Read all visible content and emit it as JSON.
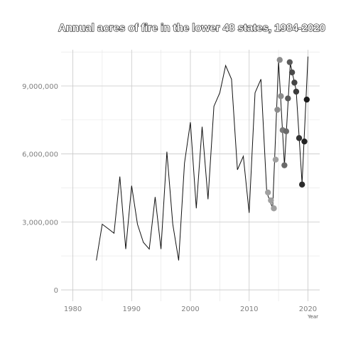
{
  "chart_data": {
    "type": "line",
    "title": "Annual acres of fire in the lower 48 states, 1984-2020",
    "xlabel": "Year",
    "ylabel": "",
    "xlim": [
      1978,
      2022
    ],
    "ylim": [
      -500000,
      10600000
    ],
    "x_ticks": [
      1980,
      1990,
      2000,
      2010,
      2020
    ],
    "x_tick_labels": [
      "1980",
      "1990",
      "2000",
      "2010",
      "2020"
    ],
    "y_ticks": [
      0,
      3000000,
      6000000,
      9000000
    ],
    "y_tick_labels": [
      "0",
      "3,000,000",
      "6,000,000",
      "9,000,000"
    ],
    "grid": true,
    "legend": "none",
    "series": [
      {
        "type": "line",
        "color": "#111111",
        "x": [
          1984,
          1985,
          1986,
          1987,
          1988,
          1989,
          1990,
          1991,
          1992,
          1993,
          1994,
          1995,
          1996,
          1997,
          1998,
          1999,
          2000,
          2001,
          2002,
          2003,
          2004,
          2005,
          2006,
          2007,
          2008,
          2009,
          2010,
          2011,
          2012,
          2013,
          2014,
          2015,
          2016,
          2017,
          2018,
          2019,
          2020
        ],
        "y": [
          1300000,
          2900000,
          2700000,
          2500000,
          5000000,
          1800000,
          4600000,
          2900000,
          2100000,
          1800000,
          4100000,
          1800000,
          6100000,
          2900000,
          1300000,
          5600000,
          7400000,
          3600000,
          7200000,
          4000000,
          8100000,
          8700000,
          9900000,
          9300000,
          5300000,
          5900000,
          3400000,
          8700000,
          9300000,
          4300000,
          3600000,
          10100000,
          5500000,
          10000000,
          8800000,
          4700000,
          10300000
        ]
      }
    ],
    "points": [
      {
        "x": 2013.2,
        "y": 4300000,
        "color": "#a0a0a0"
      },
      {
        "x": 2013.7,
        "y": 3950000,
        "color": "#a0a0a0"
      },
      {
        "x": 2014.2,
        "y": 3600000,
        "color": "#a0a0a0"
      },
      {
        "x": 2014.5,
        "y": 5750000,
        "color": "#a0a0a0"
      },
      {
        "x": 2014.8,
        "y": 7950000,
        "color": "#8c8c8c"
      },
      {
        "x": 2015.2,
        "y": 10150000,
        "color": "#8c8c8c"
      },
      {
        "x": 2015.4,
        "y": 8550000,
        "color": "#8c8c8c"
      },
      {
        "x": 2015.7,
        "y": 7050000,
        "color": "#7a7a7a"
      },
      {
        "x": 2016.0,
        "y": 5500000,
        "color": "#6a6a6a"
      },
      {
        "x": 2016.3,
        "y": 7000000,
        "color": "#6a6a6a"
      },
      {
        "x": 2016.6,
        "y": 8450000,
        "color": "#5a5a5a"
      },
      {
        "x": 2016.9,
        "y": 10050000,
        "color": "#5a5a5a"
      },
      {
        "x": 2017.3,
        "y": 9600000,
        "color": "#4a4a4a"
      },
      {
        "x": 2017.7,
        "y": 9150000,
        "color": "#444444"
      },
      {
        "x": 2018.0,
        "y": 8750000,
        "color": "#3c3c3c"
      },
      {
        "x": 2018.5,
        "y": 6700000,
        "color": "#333333"
      },
      {
        "x": 2019.0,
        "y": 4650000,
        "color": "#2a2a2a"
      },
      {
        "x": 2019.4,
        "y": 6550000,
        "color": "#222222"
      },
      {
        "x": 2019.8,
        "y": 8400000,
        "color": "#1a1a1a"
      }
    ]
  }
}
